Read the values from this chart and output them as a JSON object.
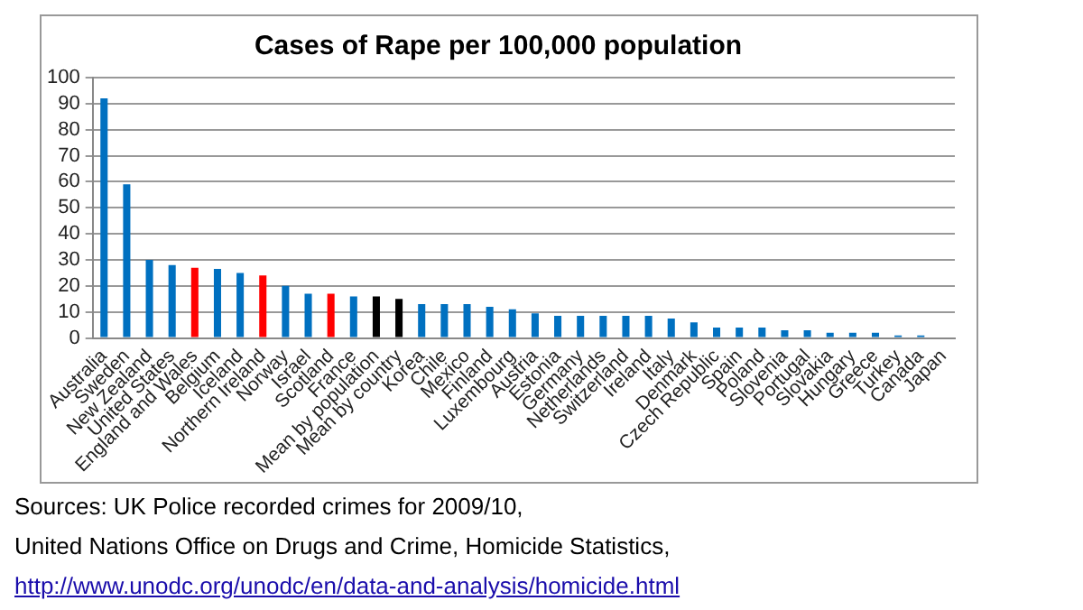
{
  "chart_data": {
    "type": "bar",
    "title": "Cases of Rape per 100,000 population",
    "categories": [
      "Australia",
      "Sweden",
      "New Zealand",
      "United States",
      "England and Wales",
      "Belgium",
      "Iceland",
      "Northern Ireland",
      "Norway",
      "Israel",
      "Scotland",
      "France",
      "Mean by population",
      "Mean by country",
      "Korea",
      "Chile",
      "Mexico",
      "Finland",
      "Luxembourg",
      "Austria",
      "Estonia",
      "Germany",
      "Netherlands",
      "Switzerland",
      "Ireland",
      "Italy",
      "Denmark",
      "Czech Republic",
      "Spain",
      "Poland",
      "Slovenia",
      "Portugal",
      "Slovakia",
      "Hungary",
      "Greece",
      "Turkey",
      "Canada",
      "Japan"
    ],
    "values": [
      92,
      59,
      30,
      28,
      27,
      26.5,
      25,
      24,
      20,
      17,
      17,
      16,
      16,
      15,
      13,
      13,
      13,
      12,
      11,
      9.5,
      8.5,
      8.5,
      8.5,
      8.5,
      8.5,
      7.5,
      6,
      4,
      4,
      4,
      3,
      3,
      2,
      2,
      2,
      1,
      1,
      0
    ],
    "colors": [
      "#0070c0",
      "#0070c0",
      "#0070c0",
      "#0070c0",
      "#ff0000",
      "#0070c0",
      "#0070c0",
      "#ff0000",
      "#0070c0",
      "#0070c0",
      "#ff0000",
      "#0070c0",
      "#000000",
      "#000000",
      "#0070c0",
      "#0070c0",
      "#0070c0",
      "#0070c0",
      "#0070c0",
      "#0070c0",
      "#0070c0",
      "#0070c0",
      "#0070c0",
      "#0070c0",
      "#0070c0",
      "#0070c0",
      "#0070c0",
      "#0070c0",
      "#0070c0",
      "#0070c0",
      "#0070c0",
      "#0070c0",
      "#0070c0",
      "#0070c0",
      "#0070c0",
      "#0070c0",
      "#0070c0",
      "#0070c0"
    ],
    "ylim": [
      0,
      100
    ],
    "yticks": [
      0,
      10,
      20,
      30,
      40,
      50,
      60,
      70,
      80,
      90,
      100
    ],
    "grid": "y",
    "annotations": [
      "Sources: UK Police recorded crimes for 2009/10,",
      "United Nations Office on Drugs and Crime, Homicide Statistics,",
      "http://www.unodc.org/unodc/en/data-and-analysis/homicide.html"
    ]
  }
}
